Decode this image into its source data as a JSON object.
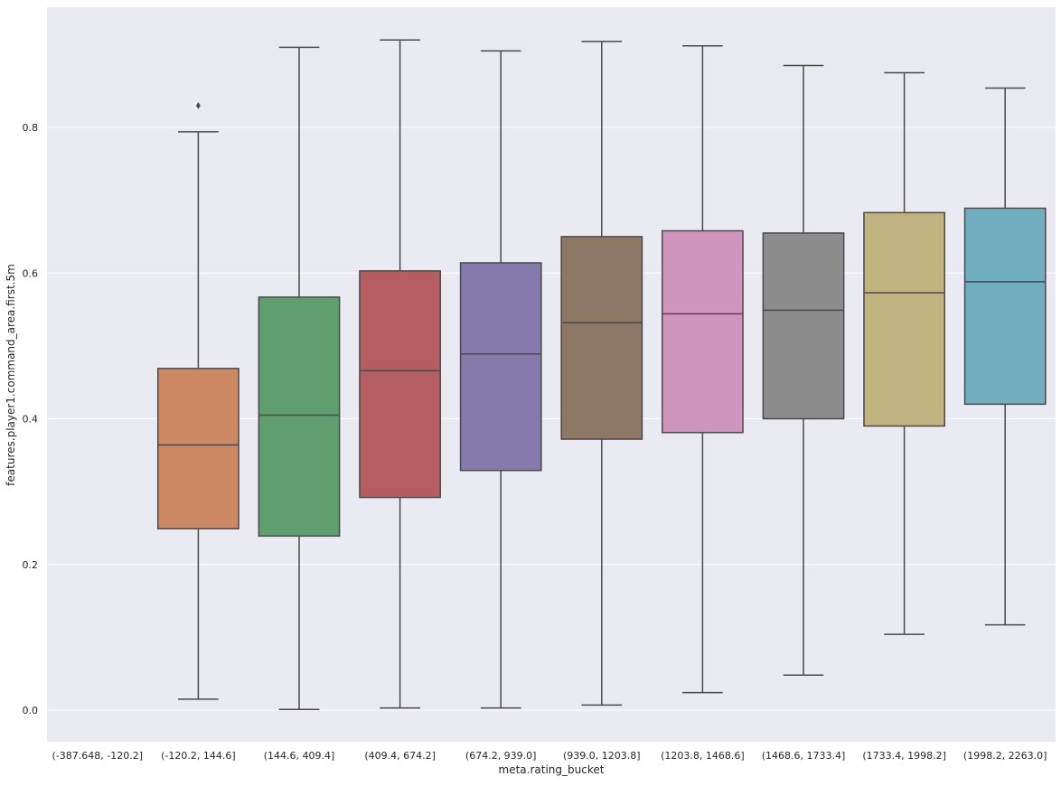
{
  "chart_data": {
    "type": "box",
    "xlabel": "meta.rating_bucket",
    "ylabel": "features.player1.command_area.first.5m",
    "ylim": [
      -0.045,
      0.975
    ],
    "yticks": [
      "0.0",
      "0.2",
      "0.4",
      "0.6",
      "0.8"
    ],
    "ytick_values": [
      0.0,
      0.2,
      0.4,
      0.6,
      0.8
    ],
    "grid": true,
    "categories": [
      "(-387.648, -120.2]",
      "(-120.2, 144.6]",
      "(144.6, 409.4]",
      "(409.4, 674.2]",
      "(674.2, 939.0]",
      "(939.0, 1203.8]",
      "(1203.8, 1468.6]",
      "(1468.6, 1733.4]",
      "(1733.4, 1998.2]",
      "(1998.2, 2263.0]"
    ],
    "boxes": [
      null,
      {
        "whisker_low": 0.015,
        "q1": 0.249,
        "median": 0.364,
        "q3": 0.469,
        "whisker_high": 0.794,
        "outliers": [
          0.83
        ],
        "color": "#cc8963"
      },
      {
        "whisker_low": 0.001,
        "q1": 0.239,
        "median": 0.405,
        "q3": 0.567,
        "whisker_high": 0.91,
        "outliers": [],
        "color": "#5f9e6e"
      },
      {
        "whisker_low": 0.003,
        "q1": 0.292,
        "median": 0.466,
        "q3": 0.603,
        "whisker_high": 0.92,
        "outliers": [],
        "color": "#b55d60"
      },
      {
        "whisker_low": 0.003,
        "q1": 0.329,
        "median": 0.489,
        "q3": 0.614,
        "whisker_high": 0.905,
        "outliers": [],
        "color": "#857aab"
      },
      {
        "whisker_low": 0.007,
        "q1": 0.372,
        "median": 0.532,
        "q3": 0.65,
        "whisker_high": 0.918,
        "outliers": [],
        "color": "#8d7866"
      },
      {
        "whisker_low": 0.024,
        "q1": 0.381,
        "median": 0.544,
        "q3": 0.658,
        "whisker_high": 0.912,
        "outliers": [],
        "color": "#d095bf"
      },
      {
        "whisker_low": 0.048,
        "q1": 0.4,
        "median": 0.549,
        "q3": 0.655,
        "whisker_high": 0.885,
        "outliers": [],
        "color": "#8c8c8c"
      },
      {
        "whisker_low": 0.104,
        "q1": 0.39,
        "median": 0.573,
        "q3": 0.683,
        "whisker_high": 0.875,
        "outliers": [],
        "color": "#c1b37f"
      },
      {
        "whisker_low": 0.117,
        "q1": 0.42,
        "median": 0.588,
        "q3": 0.689,
        "whisker_high": 0.854,
        "outliers": [],
        "color": "#71aec0"
      }
    ]
  }
}
